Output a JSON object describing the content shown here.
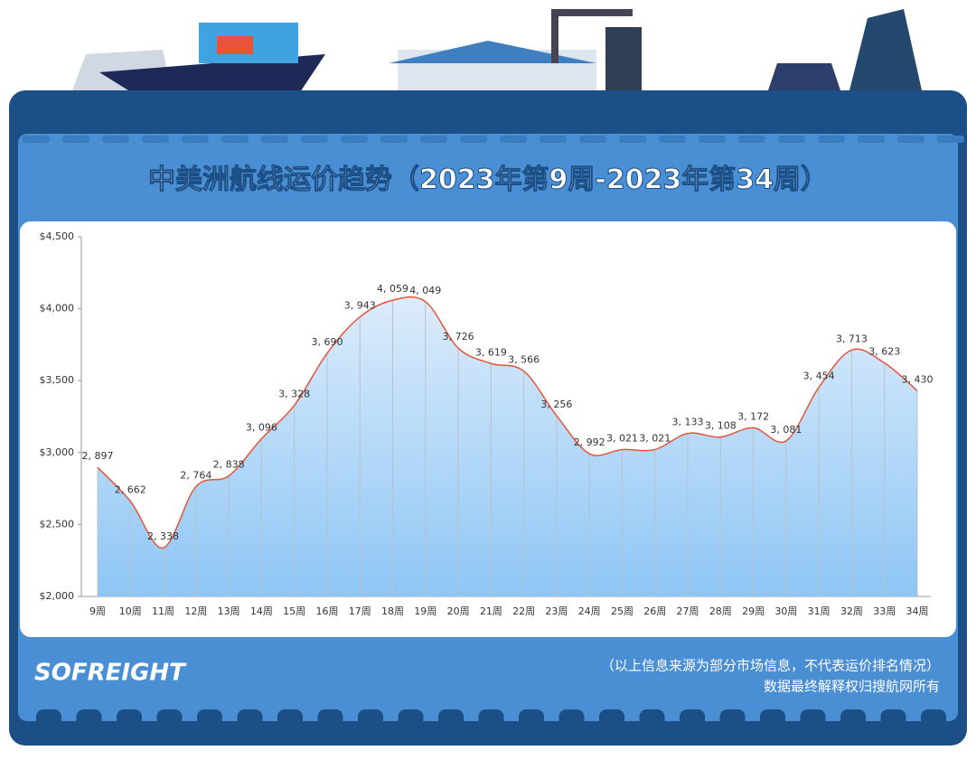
{
  "chart_data": {
    "type": "line",
    "title": "中美洲航线运价趋势（2023年第9周-2023年第34周）",
    "categories": [
      "9周",
      "10周",
      "11周",
      "12周",
      "13周",
      "14周",
      "15周",
      "16周",
      "17周",
      "18周",
      "19周",
      "20周",
      "21周",
      "22周",
      "23周",
      "24周",
      "25周",
      "26周",
      "27周",
      "28周",
      "29周",
      "30周",
      "31周",
      "32周",
      "33周",
      "34周"
    ],
    "values": [
      2897,
      2662,
      2338,
      2764,
      2838,
      3096,
      3328,
      3690,
      3943,
      4059,
      4049,
      3726,
      3619,
      3566,
      3256,
      2992,
      3021,
      3021,
      3133,
      3108,
      3172,
      3081,
      3454,
      3713,
      3623,
      3430
    ],
    "value_labels": [
      "2, 897",
      "2, 662",
      "2, 338",
      "2, 764",
      "2, 838",
      "3, 096",
      "3, 328",
      "3, 690",
      "3, 943",
      "4, 059",
      "4, 049",
      "3, 726",
      "3, 619",
      "3, 566",
      "3, 256",
      "2, 992",
      "3, 021",
      "3, 021",
      "3, 133",
      "3, 108",
      "3, 172",
      "3, 081",
      "3, 454",
      "3, 713",
      "3, 623",
      "3, 430"
    ],
    "color": "#e8533a",
    "ylim": [
      2000,
      4500
    ],
    "yticks": [
      {
        "value": 2000,
        "label": "$2,000"
      },
      {
        "value": 2500,
        "label": "$2,500"
      },
      {
        "value": 3000,
        "label": "$3,000"
      },
      {
        "value": 3500,
        "label": "$3,500"
      },
      {
        "value": 4000,
        "label": "$4,000"
      },
      {
        "value": 4500,
        "label": "$4,500"
      }
    ],
    "logo": "SOFREIGHT",
    "notes": [
      "（以上信息来源为部分市场信息，不代表运价排名情况）",
      "数据最终解释权归搜航网所有"
    ]
  }
}
